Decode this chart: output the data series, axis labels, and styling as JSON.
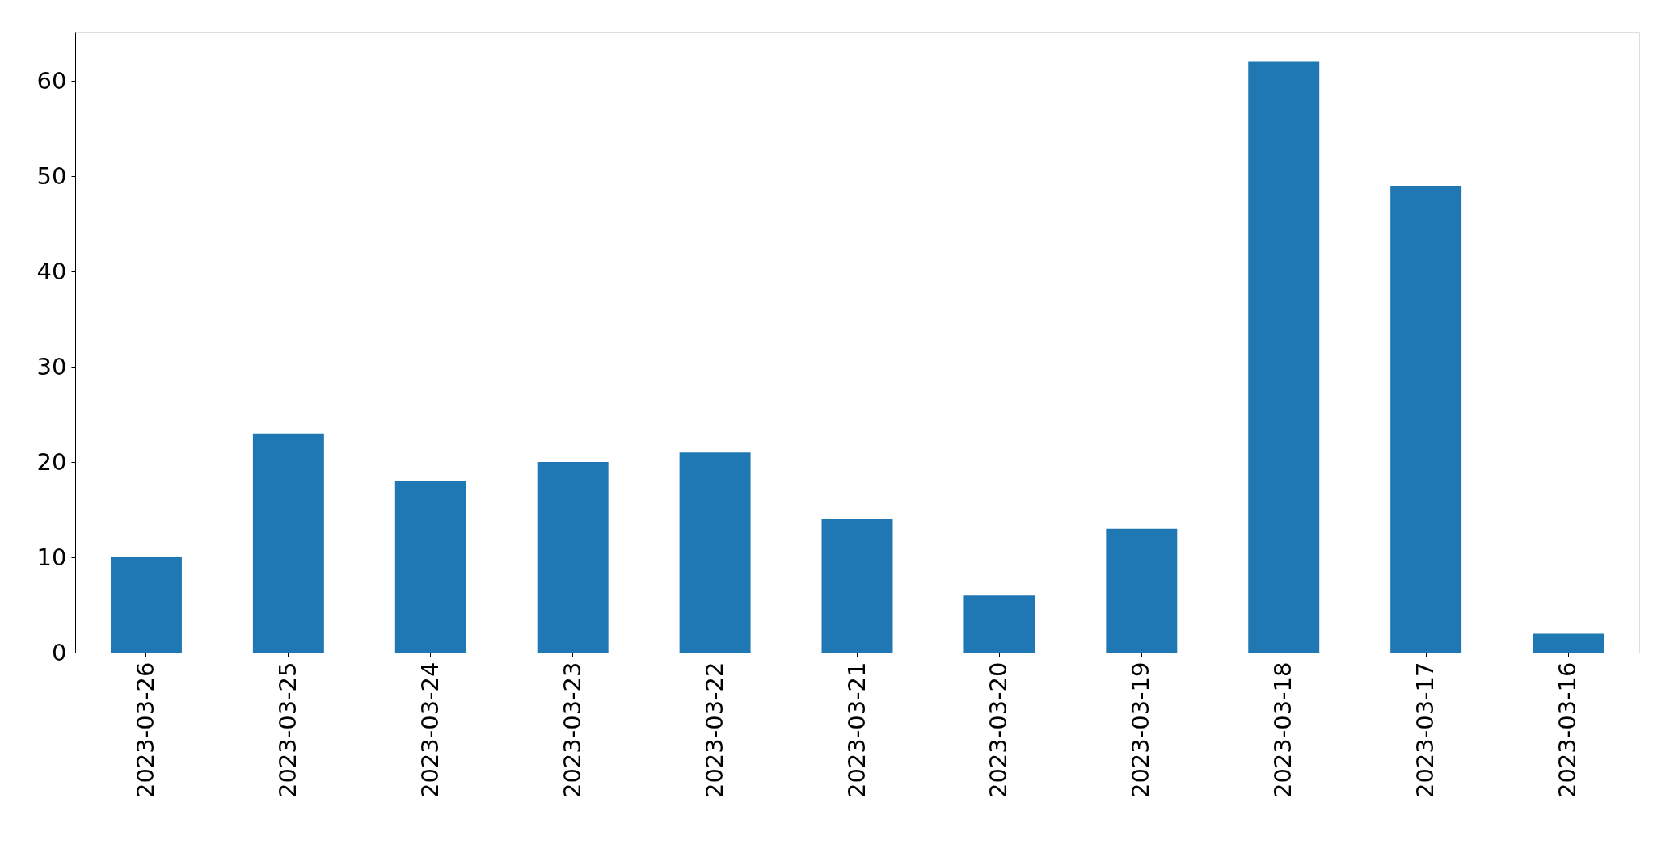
{
  "chart_data": {
    "type": "bar",
    "categories": [
      "2023-03-26",
      "2023-03-25",
      "2023-03-24",
      "2023-03-23",
      "2023-03-22",
      "2023-03-21",
      "2023-03-20",
      "2023-03-19",
      "2023-03-18",
      "2023-03-17",
      "2023-03-16"
    ],
    "values": [
      10,
      23,
      18,
      20,
      21,
      14,
      6,
      13,
      62,
      49,
      2
    ],
    "color": "#1f77b4",
    "ylim": [
      0,
      65.1
    ],
    "yticks": [
      0,
      10,
      20,
      30,
      40,
      50,
      60
    ],
    "grid": false
  }
}
